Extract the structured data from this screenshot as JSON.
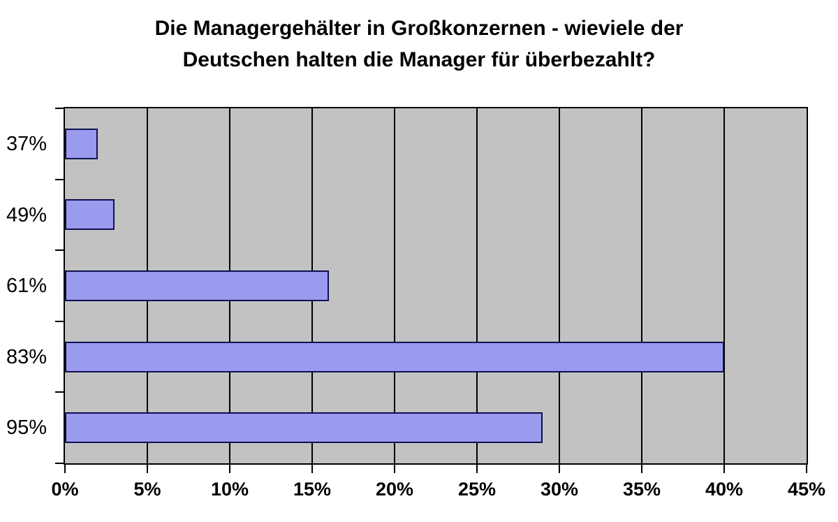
{
  "chart_data": {
    "type": "bar",
    "orientation": "horizontal",
    "title": "Die Managergehälter in Großkonzernen - wieviele der Deutschen halten die Manager für überbezahlt?",
    "title_lines": [
      "Die Managergehälter in Großkonzernen - wieviele der",
      "Deutschen halten die Manager für überbezahlt?"
    ],
    "categories": [
      "37%",
      "49%",
      "61%",
      "83%",
      "95%"
    ],
    "values": [
      2,
      3,
      16,
      40,
      29
    ],
    "xlabel": "",
    "ylabel": "",
    "xlim": [
      0,
      45
    ],
    "x_tick_labels": [
      "0%",
      "5%",
      "10%",
      "15%",
      "20%",
      "25%",
      "30%",
      "35%",
      "40%",
      "45%"
    ],
    "x_tick_values": [
      0,
      5,
      10,
      15,
      20,
      25,
      30,
      35,
      40,
      45
    ],
    "grid": true,
    "legend": false,
    "colors": {
      "bar_fill": "#9A9AEF",
      "bar_border": "#101050",
      "plot_background": "#C2C2C2",
      "gridline": "#000000",
      "axis": "#000000",
      "title_text": "#000000",
      "page_background": "#FFFFFF"
    }
  }
}
